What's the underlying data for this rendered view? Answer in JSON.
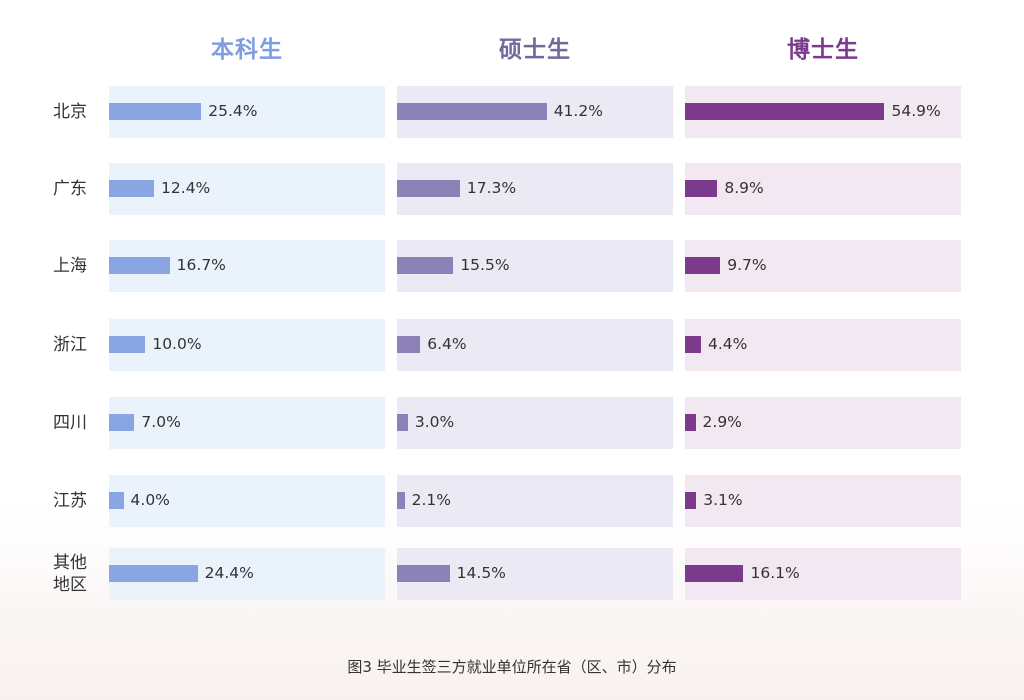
{
  "chart_data": {
    "type": "bar",
    "orientation": "horizontal",
    "caption": "图3  毕业生签三方就业单位所在省（区、市）分布",
    "categories": [
      "北京",
      "广东",
      "上海",
      "浙江",
      "四川",
      "江苏",
      "其他地区"
    ],
    "category_lines": [
      [
        "北京"
      ],
      [
        "广东"
      ],
      [
        "上海"
      ],
      [
        "浙江"
      ],
      [
        "四川"
      ],
      [
        "江苏"
      ],
      [
        "其他",
        "地区"
      ]
    ],
    "series": [
      {
        "name": "本科生",
        "values": [
          25.4,
          12.4,
          16.7,
          10.0,
          7.0,
          4.0,
          24.4
        ],
        "labels": [
          "25.4%",
          "12.4%",
          "16.7%",
          "10.0%",
          "7.0%",
          "4.0%",
          "24.4%"
        ],
        "bar_color": "#8aa6e2",
        "panel_color": "#eaf3fc",
        "title_color": "#7f9ee0"
      },
      {
        "name": "硕士生",
        "values": [
          41.2,
          17.3,
          15.5,
          6.4,
          3.0,
          2.1,
          14.5
        ],
        "labels": [
          "41.2%",
          "17.3%",
          "15.5%",
          "6.4%",
          "3.0%",
          "2.1%",
          "14.5%"
        ],
        "bar_color": "#8d82b8",
        "panel_color": "#ebe9f3",
        "title_color": "#6f6a9a"
      },
      {
        "name": "博士生",
        "values": [
          54.9,
          8.9,
          9.7,
          4.4,
          2.9,
          3.1,
          16.1
        ],
        "labels": [
          "54.9%",
          "8.9%",
          "9.7%",
          "4.4%",
          "2.9%",
          "3.1%",
          "16.1%"
        ],
        "bar_color": "#7b3a8c",
        "panel_color": "#f2e8f1",
        "title_color": "#7b3a8c"
      }
    ],
    "xlim": [
      0,
      60
    ],
    "grid": false,
    "legend": "none"
  }
}
